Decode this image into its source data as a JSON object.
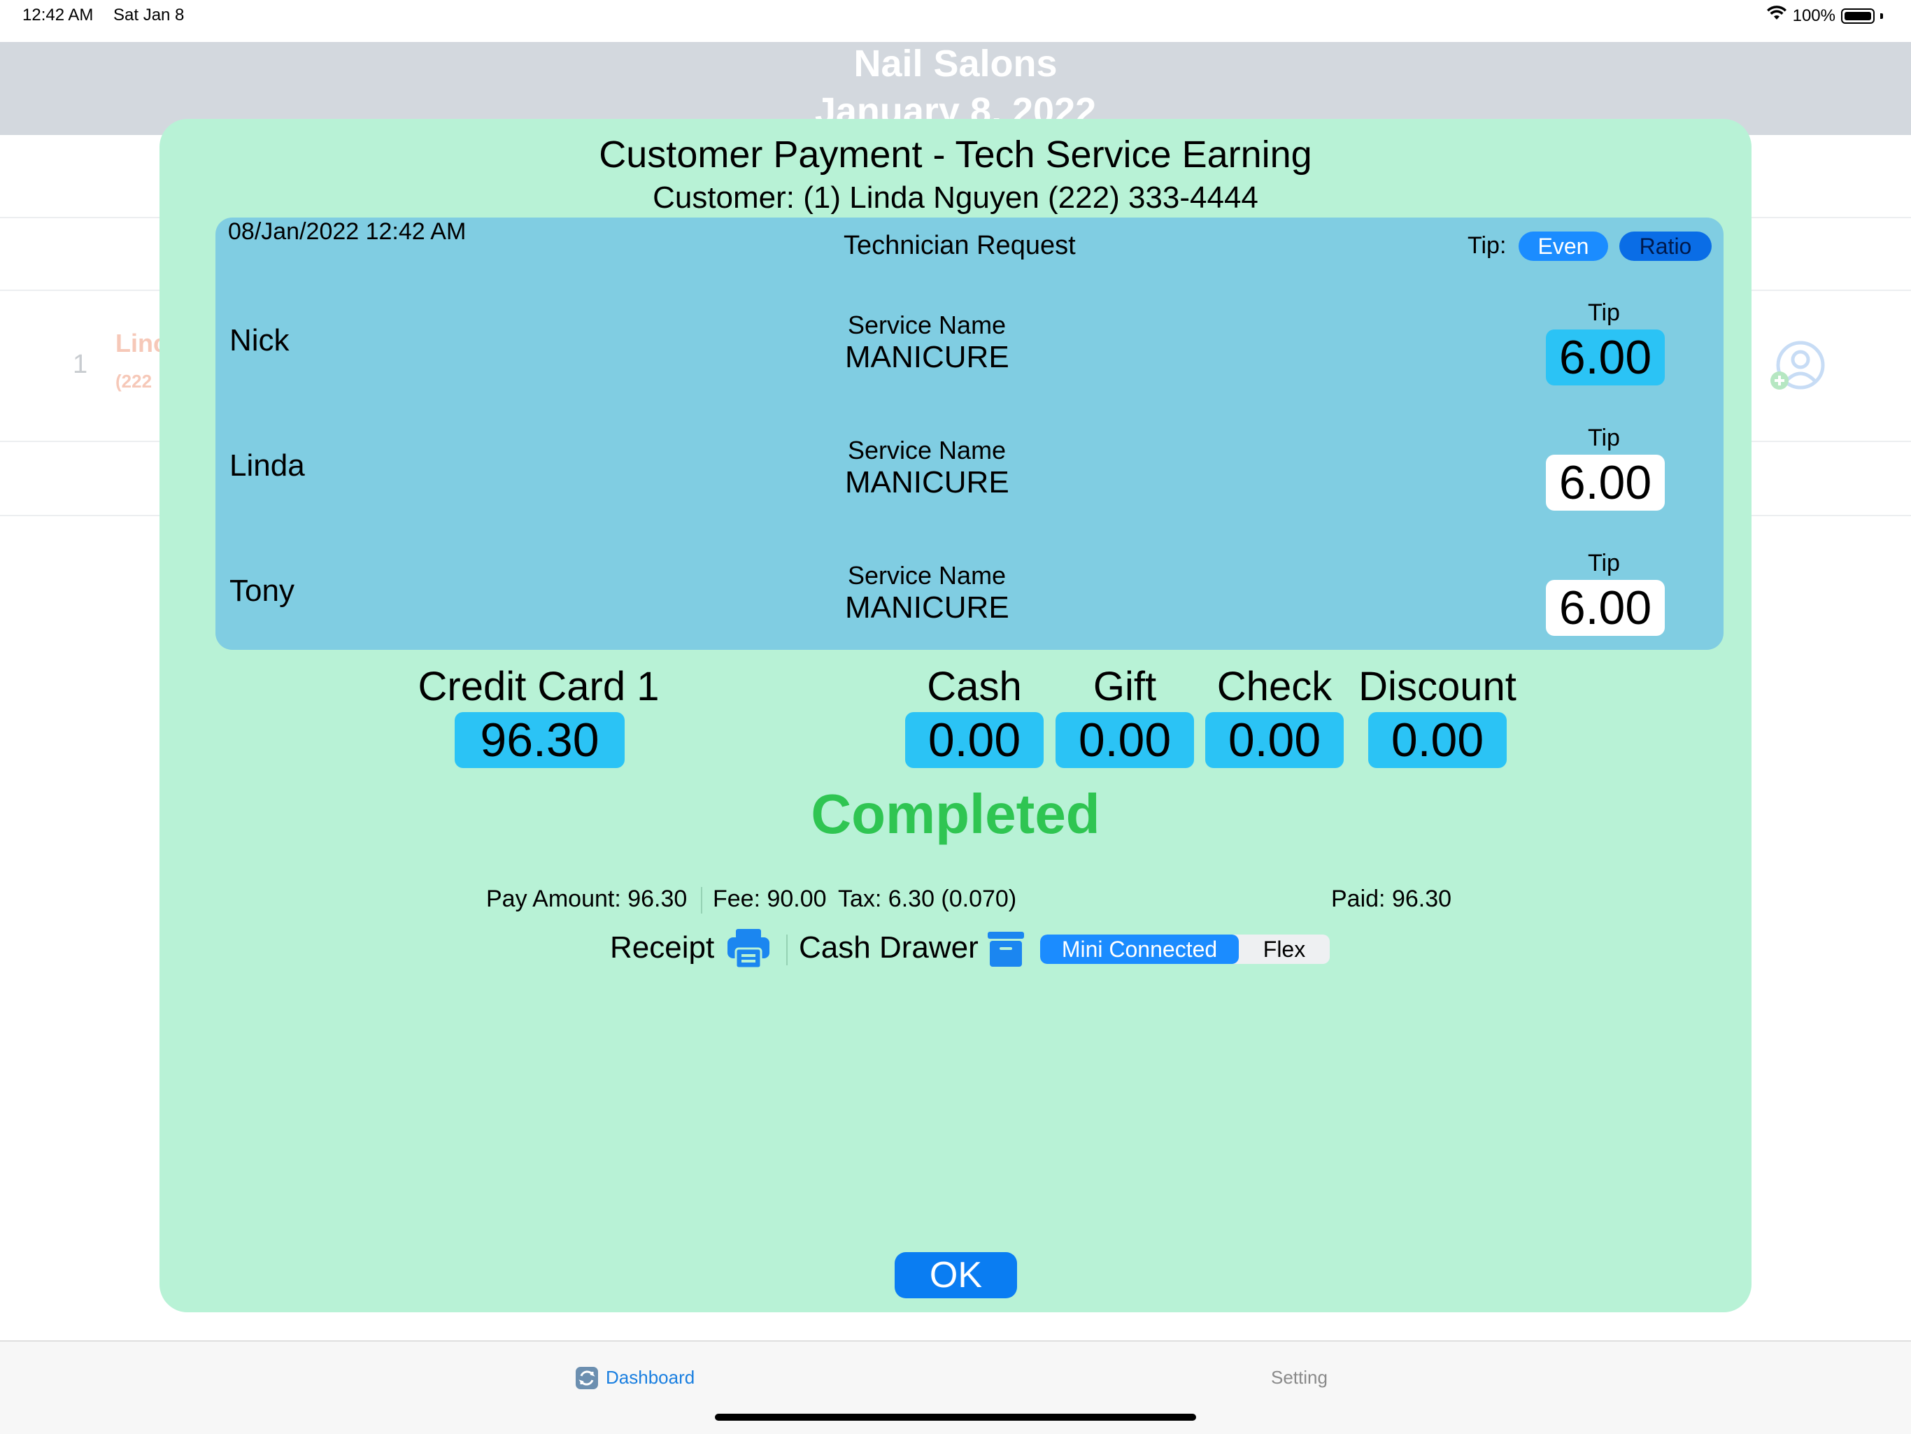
{
  "status_bar": {
    "time": "12:42 AM",
    "date": "Sat Jan 8",
    "battery": "100%"
  },
  "nav": {
    "title": "Nail Salons",
    "subtitle": "January 8, 2022"
  },
  "background_row": {
    "index": "1",
    "name": "Linc",
    "phone": "(222"
  },
  "modal": {
    "title": "Customer Payment - Tech Service Earning",
    "customer": "Customer: (1) Linda  Nguyen  (222) 333-4444",
    "datetime": "08/Jan/2022 12:42 AM",
    "request_heading": "Technician Request",
    "tip_label": "Tip:",
    "tip_even": "Even",
    "tip_ratio": "Ratio",
    "technicians": [
      {
        "name": "Nick",
        "service_label": "Service Name",
        "service": "MANICURE",
        "tip_label": "Tip",
        "tip": "6.00"
      },
      {
        "name": "Linda",
        "service_label": "Service Name",
        "service": "MANICURE",
        "tip_label": "Tip",
        "tip": "6.00"
      },
      {
        "name": "Tony",
        "service_label": "Service Name",
        "service": "MANICURE",
        "tip_label": "Tip",
        "tip": "6.00"
      }
    ],
    "payments": {
      "credit_card_label": "Credit Card 1",
      "credit_card": "96.30",
      "cash_label": "Cash",
      "cash": "0.00",
      "gift_label": "Gift",
      "gift": "0.00",
      "check_label": "Check",
      "check": "0.00",
      "discount_label": "Discount",
      "discount": "0.00"
    },
    "status": "Completed",
    "summary": {
      "pay_amount": "Pay Amount: 96.30",
      "fee": "Fee: 90.00",
      "tax": "Tax: 6.30 (0.070)",
      "paid": "Paid: 96.30"
    },
    "receipt_label": "Receipt",
    "cash_drawer_label": "Cash Drawer",
    "printer_options": [
      "Mini Connected",
      "Flex"
    ],
    "ok_label": "OK"
  },
  "tabbar": {
    "dashboard": "Dashboard",
    "setting": "Setting"
  },
  "colors": {
    "modal_bg": "#b8f2d6",
    "panel_bg": "#80cde2",
    "field_bg": "#2bc3f5",
    "accent": "#0a7df2",
    "completed": "#2fc552"
  },
  "icons": [
    "wifi-icon",
    "battery-icon",
    "add-user-icon",
    "printer-icon",
    "drawer-icon",
    "dashboard-icon"
  ]
}
